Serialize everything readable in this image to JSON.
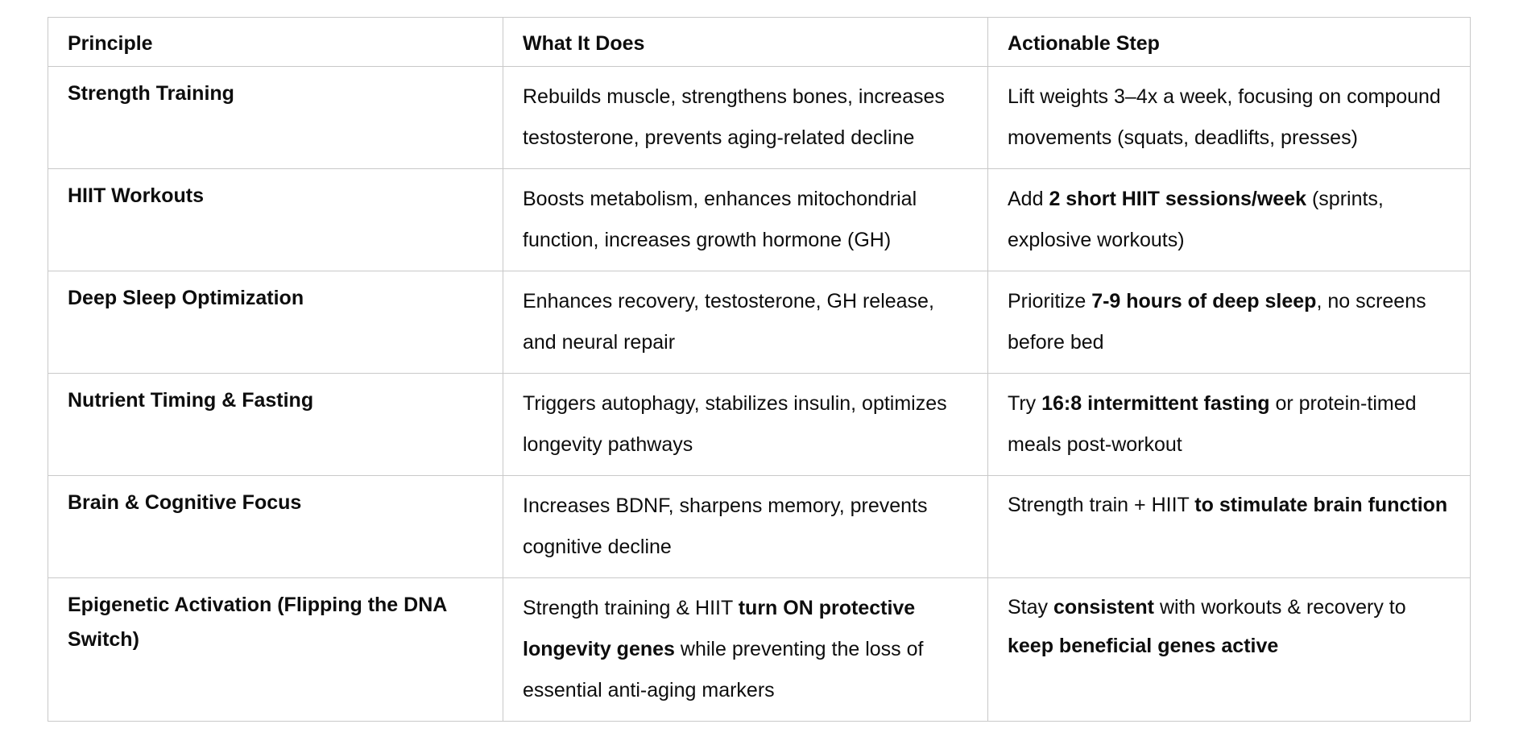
{
  "table": {
    "headers": {
      "principle": "Principle",
      "does": "What It Does",
      "step": "Actionable Step"
    },
    "rows": [
      {
        "principle": "Strength Training",
        "does": [
          {
            "text": "Rebuilds muscle, strengthens bones, increases testosterone, prevents aging-related decline",
            "bold": false
          }
        ],
        "step": [
          {
            "text": "Lift weights 3–4x a week, focusing on compound movements (squats, deadlifts, presses)",
            "bold": false
          }
        ]
      },
      {
        "principle": "HIIT Workouts",
        "does": [
          {
            "text": "Boosts metabolism, enhances mitochondrial function, increases growth hormone (GH)",
            "bold": false
          }
        ],
        "step": [
          {
            "text": "Add ",
            "bold": false
          },
          {
            "text": "2 short HIIT sessions/week",
            "bold": true
          },
          {
            "text": " (sprints, explosive workouts)",
            "bold": false
          }
        ]
      },
      {
        "principle": "Deep Sleep Optimization",
        "does": [
          {
            "text": "Enhances recovery, testosterone, GH release, and neural repair",
            "bold": false
          }
        ],
        "step": [
          {
            "text": "Prioritize ",
            "bold": false
          },
          {
            "text": "7-9 hours of deep sleep",
            "bold": true
          },
          {
            "text": ", no screens before bed",
            "bold": false
          }
        ]
      },
      {
        "principle": "Nutrient Timing & Fasting",
        "does": [
          {
            "text": "Triggers autophagy, stabilizes insulin, optimizes longevity pathways",
            "bold": false
          }
        ],
        "step": [
          {
            "text": "Try ",
            "bold": false
          },
          {
            "text": "16:8 intermittent fasting",
            "bold": true
          },
          {
            "text": " or protein-timed meals post-workout",
            "bold": false
          }
        ]
      },
      {
        "principle": "Brain & Cognitive Focus",
        "does": [
          {
            "text": "Increases BDNF, sharpens memory, prevents cognitive decline",
            "bold": false
          }
        ],
        "step": [
          {
            "text": "Strength train + HIIT ",
            "bold": false
          },
          {
            "text": "to stimulate brain function",
            "bold": true
          }
        ]
      },
      {
        "principle": "Epigenetic Activation (Flipping the DNA Switch)",
        "does": [
          {
            "text": "Strength training & HIIT ",
            "bold": false
          },
          {
            "text": "turn ON protective longevity genes",
            "bold": true
          },
          {
            "text": " while preventing the loss of essential anti-aging markers",
            "bold": false
          }
        ],
        "step": [
          {
            "text": "Stay ",
            "bold": false
          },
          {
            "text": "consistent",
            "bold": true
          },
          {
            "text": " with workouts & recovery to ",
            "bold": false
          },
          {
            "text": "keep beneficial genes active",
            "bold": true
          }
        ]
      }
    ]
  }
}
